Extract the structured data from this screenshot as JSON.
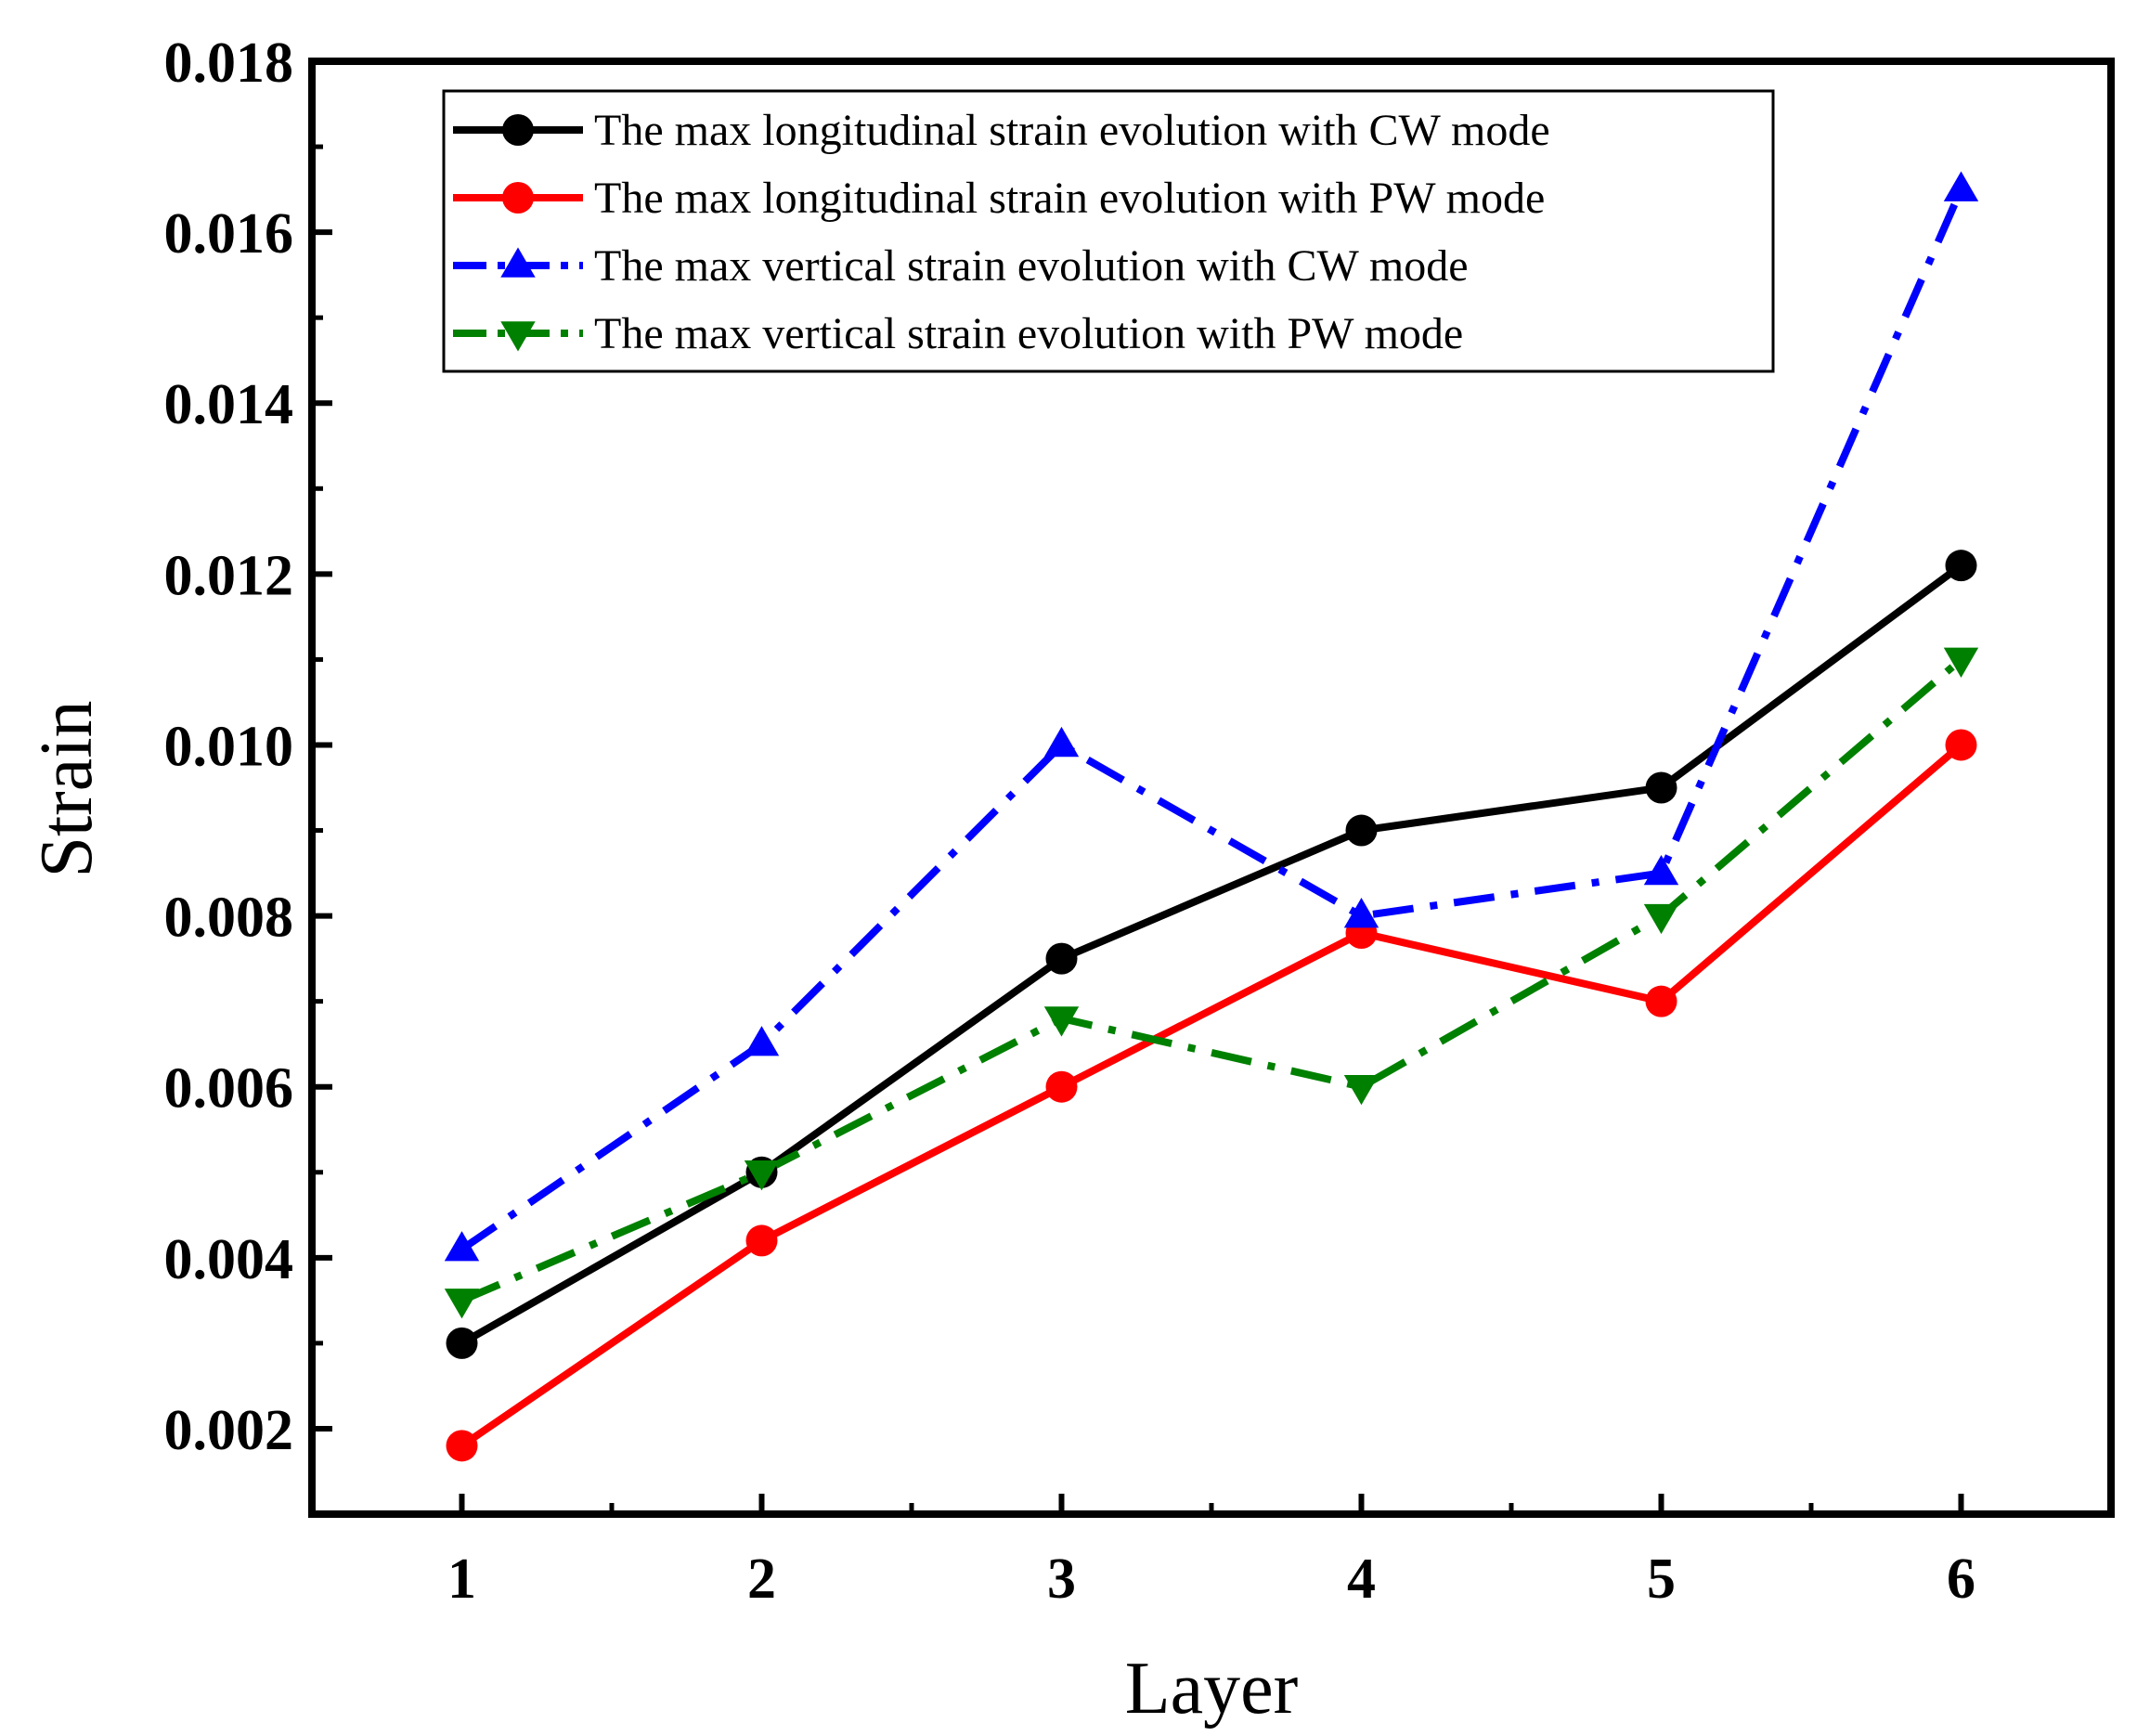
{
  "chart_data": {
    "type": "line",
    "title": "",
    "xlabel": "Layer",
    "ylabel": "Strain",
    "x": [
      1,
      2,
      3,
      4,
      5,
      6
    ],
    "xlim": [
      0.5,
      6.5
    ],
    "ylim": [
      0.001,
      0.018
    ],
    "x_ticks": [
      "1",
      "2",
      "3",
      "4",
      "5",
      "6"
    ],
    "y_ticks": [
      "0.002",
      "0.004",
      "0.006",
      "0.008",
      "0.010",
      "0.012",
      "0.014",
      "0.016",
      "0.018"
    ],
    "grid": false,
    "legend_position": "top-left",
    "series": [
      {
        "name": "The max longitudinal strain evolution with CW mode",
        "color": "#000000",
        "marker": "circle",
        "line_style": "solid",
        "values": [
          0.003,
          0.005,
          0.0075,
          0.009,
          0.0095,
          0.0121
        ]
      },
      {
        "name": "The max longitudinal strain evolution with PW mode",
        "color": "#ff0000",
        "marker": "circle",
        "line_style": "solid",
        "values": [
          0.0018,
          0.0042,
          0.006,
          0.0078,
          0.007,
          0.01
        ]
      },
      {
        "name": "The max vertical strain evolution with CW mode",
        "color": "#0000ff",
        "marker": "triangle-up",
        "line_style": "dash-dot",
        "values": [
          0.0041,
          0.0065,
          0.01,
          0.008,
          0.0085,
          0.0165
        ]
      },
      {
        "name": "The max vertical strain evolution with PW mode",
        "color": "#008000",
        "marker": "triangle-down",
        "line_style": "dash-dot",
        "values": [
          0.0035,
          0.005,
          0.0068,
          0.006,
          0.008,
          0.011
        ]
      }
    ]
  }
}
